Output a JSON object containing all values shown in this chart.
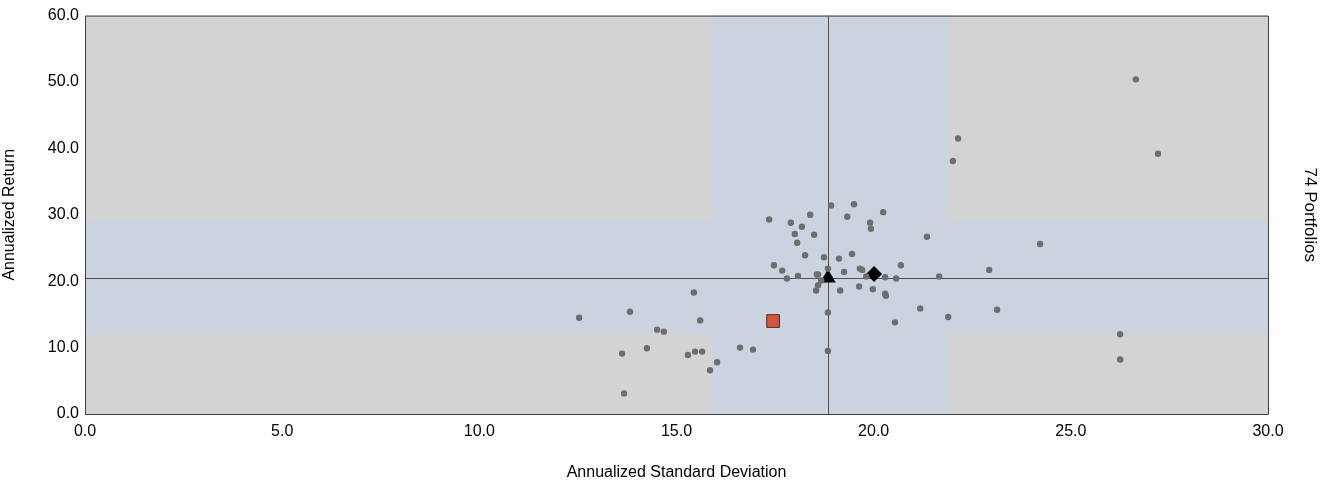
{
  "chart_data": {
    "type": "scatter",
    "xlabel": "Annualized Standard Deviation",
    "ylabel": "Annualized Return",
    "annotations": [
      "74 Portfolios"
    ],
    "xlim": [
      0,
      30
    ],
    "ylim": [
      0,
      60
    ],
    "xticks": [
      {
        "value": 0,
        "label": "0.0"
      },
      {
        "value": 5,
        "label": "5.0"
      },
      {
        "value": 10,
        "label": "10.0"
      },
      {
        "value": 15,
        "label": "15.0"
      },
      {
        "value": 20,
        "label": "20.0"
      },
      {
        "value": 25,
        "label": "25.0"
      },
      {
        "value": 30,
        "label": "30.0"
      }
    ],
    "yticks": [
      {
        "value": 0,
        "label": "0.0"
      },
      {
        "value": 10,
        "label": "10.0"
      },
      {
        "value": 20,
        "label": "20.0"
      },
      {
        "value": 30,
        "label": "30.0"
      },
      {
        "value": 40,
        "label": "40.0"
      },
      {
        "value": 50,
        "label": "50.0"
      },
      {
        "value": 60,
        "label": "60.0"
      }
    ],
    "grid": false,
    "legend": false,
    "bands": [
      {
        "axis": "x",
        "from": 15.9,
        "to": 21.85,
        "color": "#cbd3e0"
      },
      {
        "axis": "y",
        "from": 12.1,
        "to": 29.2,
        "color": "#cbd3e0"
      }
    ],
    "ref_lines": [
      {
        "axis": "x",
        "value": 18.84,
        "color": "#505050"
      },
      {
        "axis": "y",
        "value": 20.5,
        "color": "#505050"
      }
    ],
    "series": [
      {
        "color": "#6e6e6e",
        "marker": "circle",
        "x": [
          12.53,
          13.62,
          13.82,
          13.67,
          14.25,
          14.51,
          14.68,
          15.44,
          15.6,
          15.29,
          15.47,
          15.65,
          15.85,
          16.03,
          16.61,
          16.94,
          17.35,
          17.9,
          18.0,
          18.06,
          17.47,
          17.68,
          17.8,
          18.18,
          18.39,
          18.49,
          18.92,
          19.5,
          19.33,
          19.91,
          19.93,
          20.24,
          21.35,
          18.26,
          18.74,
          19.12,
          19.45,
          18.08,
          18.56,
          18.84,
          19.25,
          19.65,
          19.71,
          19.81,
          20.29,
          20.57,
          20.69,
          21.66,
          22.93,
          18.59,
          18.67,
          18.59,
          18.54,
          19.15,
          18.84,
          19.63,
          19.98,
          20.29,
          20.31,
          21.18,
          20.54,
          21.89,
          23.13,
          18.84,
          26.65,
          22.14,
          22.01,
          27.21,
          24.22,
          26.25,
          26.25
        ],
        "values": [
          14.5,
          9.1,
          15.4,
          3.1,
          9.9,
          12.7,
          12.4,
          18.3,
          14.1,
          8.9,
          9.4,
          9.4,
          6.6,
          7.8,
          10.0,
          9.7,
          29.3,
          28.8,
          27.1,
          25.8,
          22.4,
          21.6,
          20.4,
          28.2,
          30.0,
          27.0,
          31.4,
          31.6,
          29.7,
          28.8,
          27.9,
          30.4,
          26.7,
          23.9,
          23.6,
          23.4,
          24.1,
          20.8,
          21.0,
          21.9,
          21.4,
          21.9,
          21.7,
          20.7,
          20.6,
          20.4,
          22.4,
          20.7,
          21.7,
          21.0,
          20.1,
          19.4,
          18.6,
          18.6,
          15.3,
          19.2,
          18.8,
          18.1,
          17.8,
          15.9,
          13.8,
          14.6,
          15.7,
          9.5,
          50.4,
          41.5,
          38.1,
          39.2,
          25.6,
          12.0,
          8.2
        ]
      },
      {
        "color": "#cd5542",
        "marker": "square",
        "x": [
          17.45
        ],
        "values": [
          14.0
        ]
      },
      {
        "color": "#000000",
        "marker": "diamond",
        "x": [
          20.01
        ],
        "values": [
          21.1
        ]
      },
      {
        "color": "#000000",
        "marker": "triangle",
        "x": [
          18.84
        ],
        "values": [
          20.5
        ]
      }
    ]
  }
}
